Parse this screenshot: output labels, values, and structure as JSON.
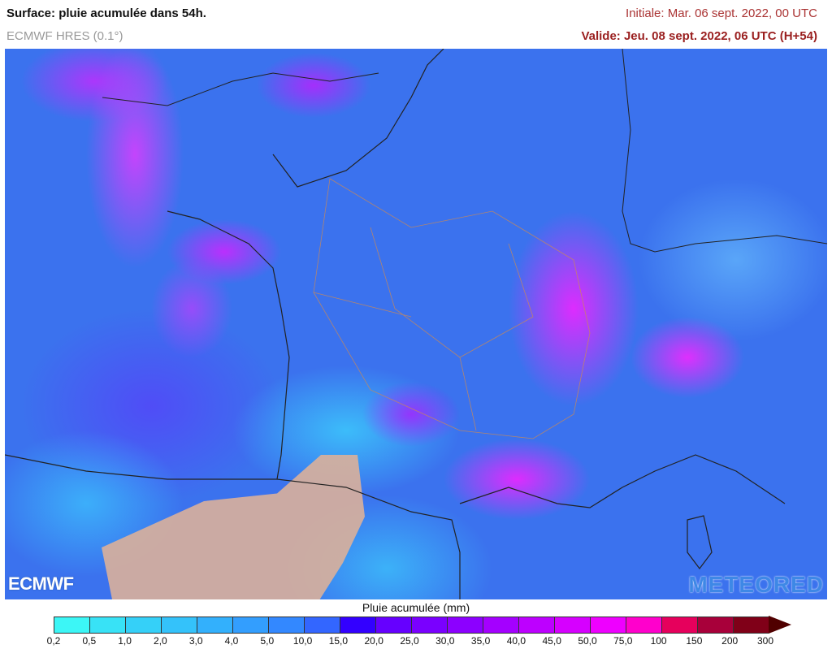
{
  "header": {
    "title": "Surface: pluie acumulée dans 54h.",
    "model": "ECMWF HRES (0.1°)",
    "initial": "Initiale: Mar. 06 sept. 2022, 00 UTC",
    "valid": "Valide: Jeu. 08 sept. 2022, 06 UTC (H+54)"
  },
  "logos": {
    "left": "ECMWF",
    "right": "METEORED"
  },
  "legend": {
    "title": "Pluie acumulée (mm)",
    "labels": [
      "0,2",
      "0,5",
      "1,0",
      "2,0",
      "3,0",
      "4,0",
      "5,0",
      "10,0",
      "15,0",
      "20,0",
      "25,0",
      "30,0",
      "35,0",
      "40,0",
      "45,0",
      "50,0",
      "75,0",
      "100",
      "150",
      "200",
      "300"
    ],
    "colors": [
      "#3cf6f6",
      "#38e2f6",
      "#35d0f8",
      "#34c2fa",
      "#33b0fc",
      "#339efe",
      "#3388ff",
      "#3366ff",
      "#3300ff",
      "#6600ff",
      "#7a00ff",
      "#8c00ff",
      "#a400ff",
      "#bd00ff",
      "#d600ff",
      "#ee00ff",
      "#ff00cc",
      "#e6005c",
      "#a8003a",
      "#800018"
    ],
    "arrow_color": "#500000"
  }
}
